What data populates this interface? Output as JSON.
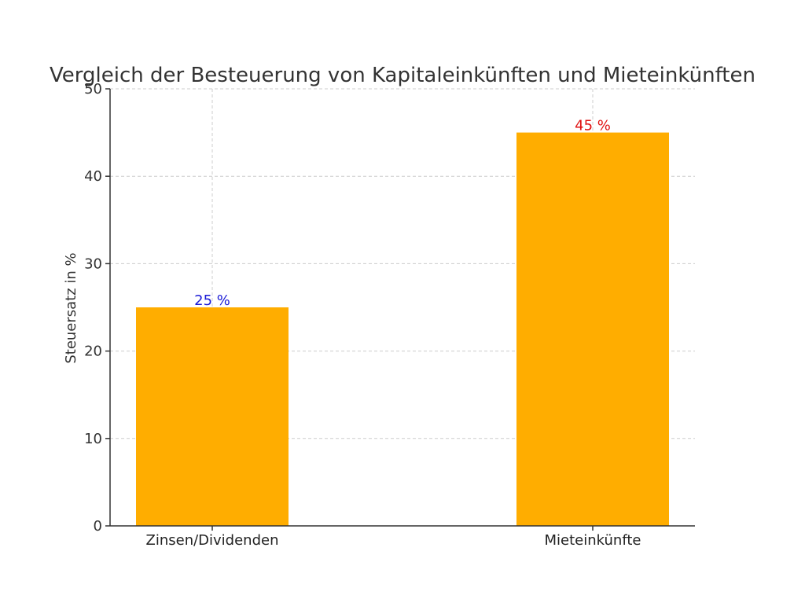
{
  "chart_data": {
    "type": "bar",
    "title": "Vergleich der Besteuerung von Kapitaleinkünften und Mieteinkünften",
    "xlabel": "",
    "ylabel": "Steuersatz in %",
    "categories": [
      "Zinsen/Dividenden",
      "Mieteinkünfte"
    ],
    "values": [
      25,
      45
    ],
    "data_labels": [
      "25 %",
      "45 %"
    ],
    "data_label_colors": [
      "#1a1ad6",
      "#e01010"
    ],
    "bar_color": "#ffad00",
    "ylim": [
      0,
      50
    ],
    "yticks": [
      0,
      10,
      20,
      30,
      40,
      50
    ],
    "grid": true,
    "legend": "none"
  }
}
